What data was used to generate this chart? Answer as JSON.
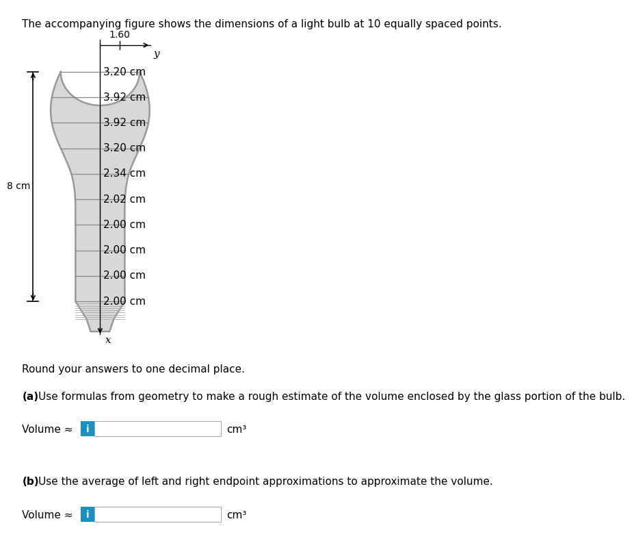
{
  "title_text": "The accompanying figure shows the dimensions of a light bulb at 10 equally spaced points.",
  "radii": [
    3.2,
    3.92,
    3.92,
    3.2,
    2.34,
    2.02,
    2.0,
    2.0,
    2.0,
    2.0
  ],
  "label_8cm": "8 cm",
  "label_160": "1.60",
  "label_y": "y",
  "label_x": "x",
  "round_text": "Round your answers to one decimal place.",
  "part_a_label": "(a)",
  "part_a_text": " Use formulas from geometry to make a rough estimate of the volume enclosed by the glass portion of the bulb.",
  "volume_label": "Volume ≈",
  "cm3": "cm³",
  "part_b_label": "(b)",
  "part_b_text": " Use the average of left and right endpoint approximations to approximate the volume.",
  "bg_color": "#ffffff",
  "bulb_fill": "#d8d8d8",
  "bulb_stroke": "#999999",
  "base_fill": "#cccccc",
  "base_stroke": "#999999",
  "line_color": "#888888",
  "text_color": "#000000",
  "blue_button": "#1a8fc1",
  "input_box_color": "#ffffff",
  "input_border": "#aaaaaa",
  "title_fontsize": 11,
  "body_fontsize": 11,
  "cm_label_fontsize": 11
}
